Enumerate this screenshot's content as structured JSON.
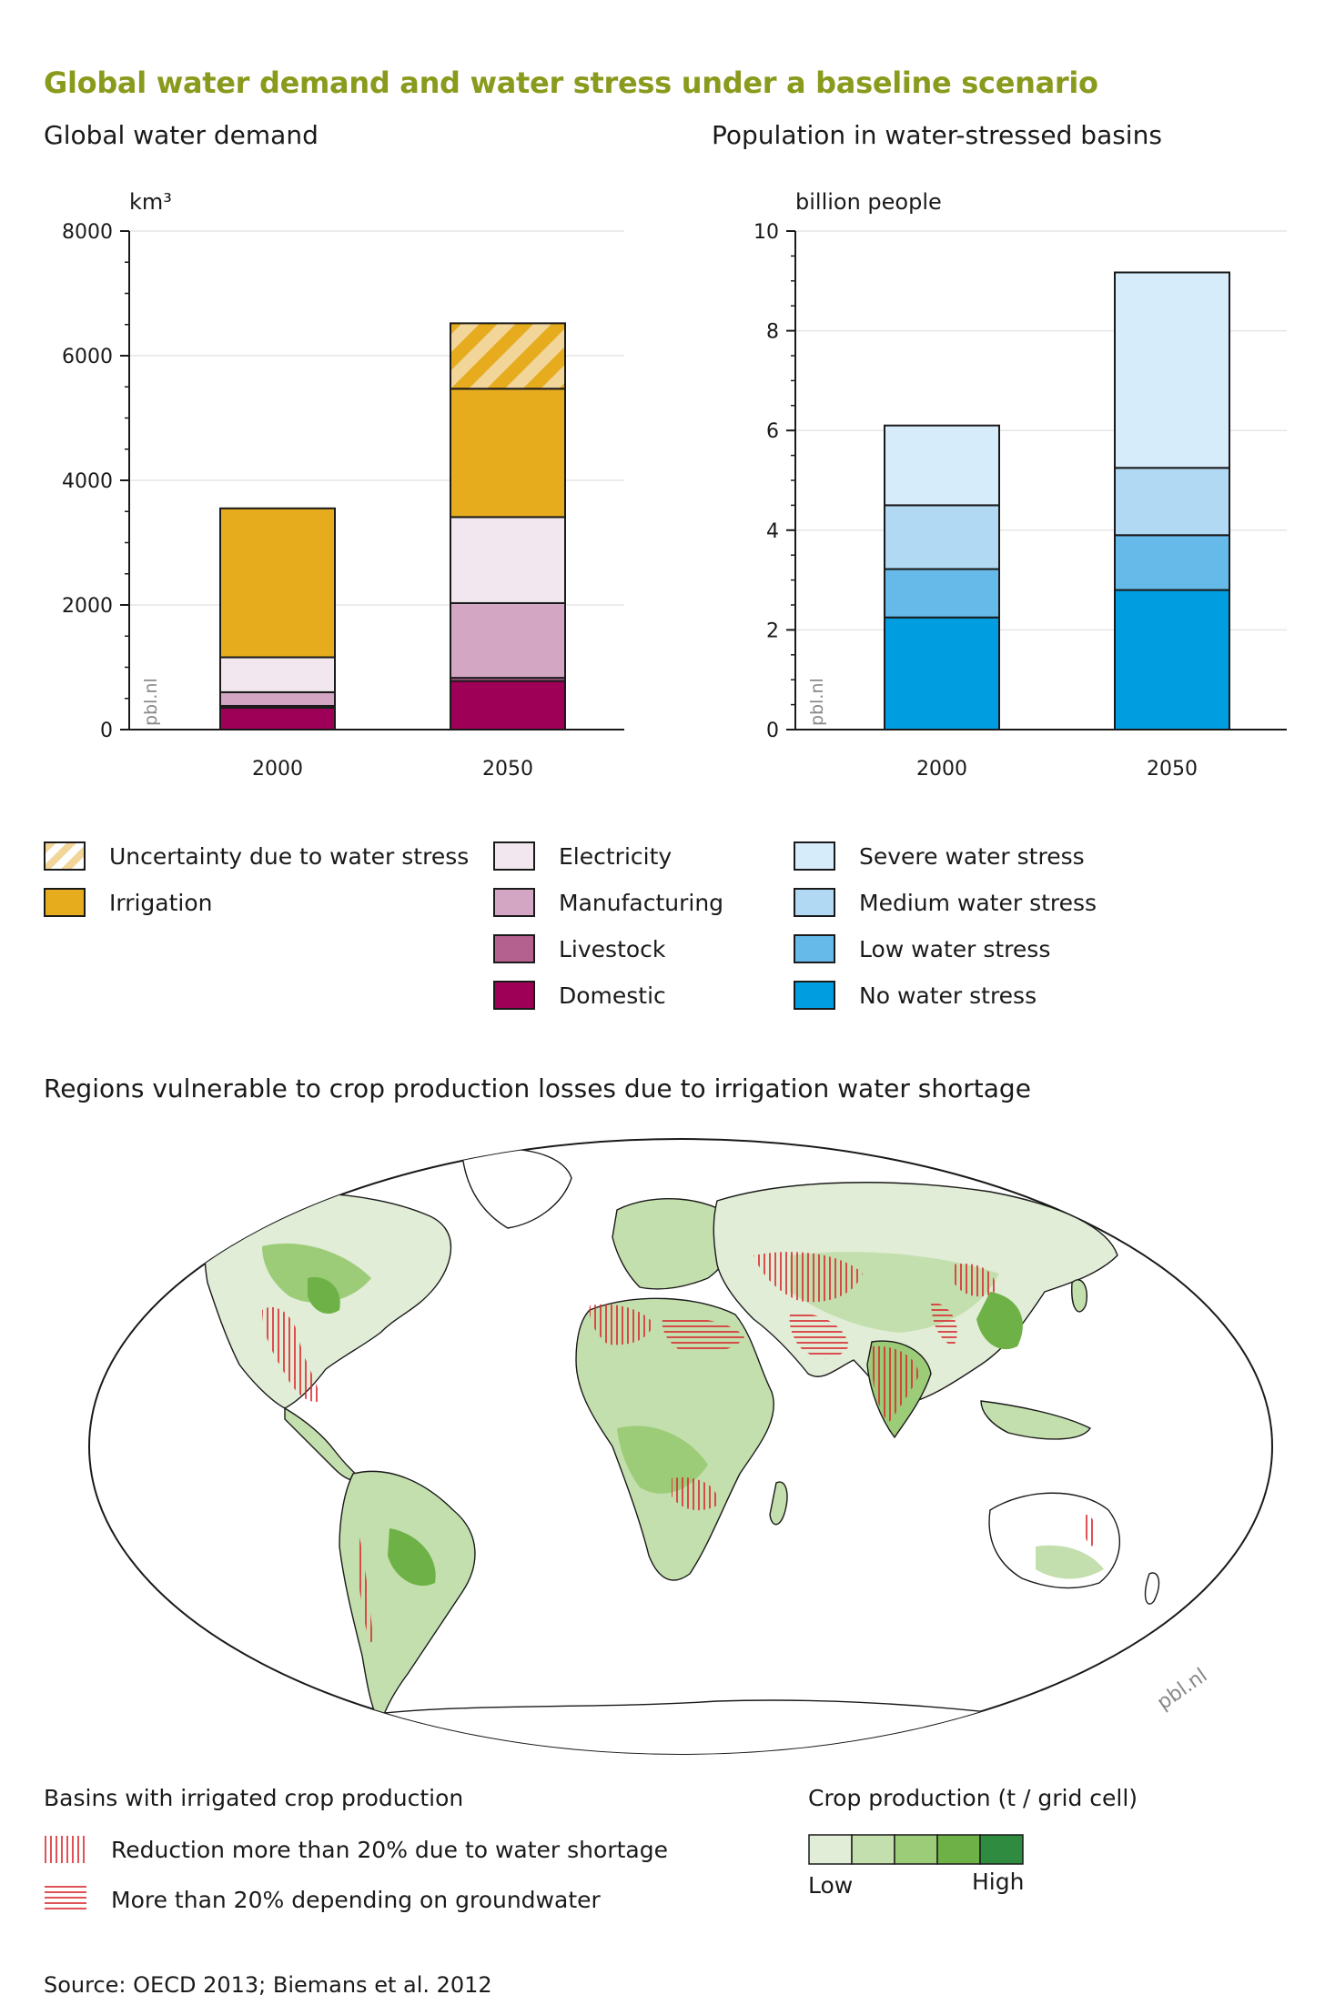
{
  "page": {
    "title": "Global water demand and water stress under a baseline scenario",
    "source": "Source: OECD 2013; Biemans et al. 2012",
    "watermark": "pbl.nl"
  },
  "colors": {
    "title": "#8a9a1c",
    "uncertainty_stripe": "#f1d599",
    "irrigation": "#e6ac1e",
    "electricity": "#f2e7ee",
    "manufacturing": "#d3a7c4",
    "livestock": "#b5618f",
    "domestic": "#9e0058",
    "severe": "#d6ecfa",
    "medium": "#b2d9f4",
    "low": "#66baea",
    "none": "#009ee0",
    "crop_scale": [
      "#e1edd6",
      "#c4dfae",
      "#9dcc79",
      "#6eb247",
      "#2e8b3f"
    ],
    "hatch": "#d9262b"
  },
  "chart_data": [
    {
      "type": "bar",
      "stacked": true,
      "title": "Global water demand",
      "ylabel": "km³",
      "ylim": [
        0,
        8000
      ],
      "yticks": [
        "0",
        "2000",
        "4000",
        "6000",
        "8000"
      ],
      "categories": [
        "2000",
        "2050"
      ],
      "series": [
        {
          "name": "Domestic",
          "values": [
            350,
            780
          ]
        },
        {
          "name": "Livestock",
          "values": [
            30,
            50
          ]
        },
        {
          "name": "Manufacturing",
          "values": [
            220,
            1200
          ]
        },
        {
          "name": "Electricity",
          "values": [
            560,
            1380
          ]
        },
        {
          "name": "Irrigation",
          "values": [
            2390,
            2060
          ]
        },
        {
          "name": "Uncertainty due to water stress",
          "values": [
            0,
            1050
          ]
        }
      ],
      "grid": true
    },
    {
      "type": "bar",
      "stacked": true,
      "title": "Population in water-stressed basins",
      "ylabel": "billion people",
      "ylim": [
        0,
        10
      ],
      "yticks": [
        "0",
        "2",
        "4",
        "6",
        "8",
        "10"
      ],
      "categories": [
        "2000",
        "2050"
      ],
      "series": [
        {
          "name": "No water stress",
          "values": [
            2.25,
            2.8
          ]
        },
        {
          "name": "Low water stress",
          "values": [
            0.97,
            1.1
          ]
        },
        {
          "name": "Medium water stress",
          "values": [
            1.28,
            1.35
          ]
        },
        {
          "name": "Severe water stress",
          "values": [
            1.6,
            3.92
          ]
        }
      ],
      "grid": true
    }
  ],
  "demand_legend": [
    {
      "label": "Uncertainty due to water stress",
      "key": "uncertainty"
    },
    {
      "label": "Irrigation",
      "key": "irrigation"
    },
    {
      "label": "Electricity",
      "key": "electricity"
    },
    {
      "label": "Manufacturing",
      "key": "manufacturing"
    },
    {
      "label": "Livestock",
      "key": "livestock"
    },
    {
      "label": "Domestic",
      "key": "domestic"
    }
  ],
  "stress_legend": [
    {
      "label": "Severe water stress",
      "key": "severe"
    },
    {
      "label": "Medium water stress",
      "key": "medium"
    },
    {
      "label": "Low water stress",
      "key": "low"
    },
    {
      "label": "No water stress",
      "key": "none"
    }
  ],
  "map": {
    "title": "Regions vulnerable to crop production losses due to irrigation water shortage",
    "basins_heading": "Basins with irrigated crop production",
    "reduction_label": "Reduction more than 20% due to water shortage",
    "groundwater_label": "More than 20% depending on groundwater",
    "crop_heading": "Crop production (t / grid cell)",
    "low_label": "Low",
    "high_label": "High"
  }
}
